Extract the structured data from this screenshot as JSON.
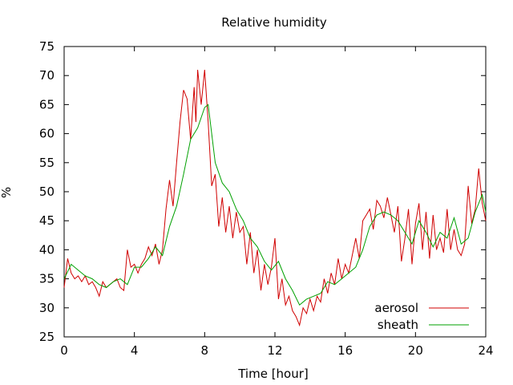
{
  "chart_data": {
    "type": "line",
    "title": "Relative humidity",
    "xlabel": "Time [hour]",
    "ylabel": "%",
    "xlim": [
      0,
      24
    ],
    "ylim": [
      25,
      75
    ],
    "x_ticks": [
      0,
      4,
      8,
      12,
      16,
      20,
      24
    ],
    "y_ticks": [
      25,
      30,
      35,
      40,
      45,
      50,
      55,
      60,
      65,
      70,
      75
    ],
    "grid": false,
    "legend_position": "bottom-right",
    "series": [
      {
        "name": "aerosol",
        "color": "#d00000",
        "x": [
          0,
          0.2,
          0.4,
          0.6,
          0.8,
          1.0,
          1.2,
          1.4,
          1.6,
          1.8,
          2.0,
          2.2,
          2.4,
          2.6,
          2.8,
          3.0,
          3.2,
          3.4,
          3.6,
          3.8,
          4.0,
          4.2,
          4.4,
          4.6,
          4.8,
          5.0,
          5.2,
          5.4,
          5.6,
          5.8,
          6.0,
          6.2,
          6.4,
          6.6,
          6.8,
          7.0,
          7.2,
          7.4,
          7.5,
          7.6,
          7.8,
          8.0,
          8.2,
          8.4,
          8.6,
          8.8,
          9.0,
          9.2,
          9.4,
          9.6,
          9.8,
          10.0,
          10.2,
          10.4,
          10.6,
          10.8,
          11.0,
          11.2,
          11.4,
          11.6,
          11.8,
          12.0,
          12.2,
          12.4,
          12.6,
          12.8,
          13.0,
          13.2,
          13.4,
          13.6,
          13.8,
          14.0,
          14.2,
          14.4,
          14.6,
          14.8,
          15.0,
          15.2,
          15.4,
          15.6,
          15.8,
          16.0,
          16.2,
          16.4,
          16.6,
          16.8,
          17.0,
          17.2,
          17.4,
          17.6,
          17.8,
          18.0,
          18.2,
          18.4,
          18.6,
          18.8,
          19.0,
          19.2,
          19.4,
          19.6,
          19.8,
          20.0,
          20.2,
          20.4,
          20.6,
          20.8,
          21.0,
          21.2,
          21.4,
          21.6,
          21.8,
          22.0,
          22.2,
          22.4,
          22.6,
          22.8,
          23.0,
          23.2,
          23.4,
          23.6,
          23.8,
          24.0
        ],
        "values": [
          33.5,
          38.5,
          36.0,
          35.0,
          35.5,
          34.5,
          35.5,
          34.0,
          34.5,
          33.5,
          32.0,
          34.5,
          33.5,
          34.0,
          34.5,
          35.0,
          33.5,
          33.0,
          40.0,
          37.0,
          37.5,
          36.0,
          37.5,
          38.5,
          40.5,
          39.0,
          41.0,
          37.5,
          40.0,
          47.0,
          52.0,
          47.5,
          55.0,
          62.0,
          67.5,
          66.0,
          59.0,
          68.0,
          62.0,
          71.0,
          65.0,
          71.0,
          62.0,
          51.0,
          53.0,
          44.0,
          49.0,
          43.0,
          47.5,
          42.0,
          46.5,
          43.0,
          44.0,
          37.5,
          43.0,
          36.0,
          40.0,
          33.0,
          37.5,
          34.0,
          37.0,
          42.0,
          31.5,
          35.0,
          30.5,
          32.0,
          29.5,
          28.5,
          27.0,
          30.0,
          29.0,
          31.5,
          29.5,
          32.0,
          31.0,
          35.0,
          32.5,
          36.0,
          34.0,
          38.5,
          35.0,
          37.5,
          36.0,
          39.0,
          42.0,
          38.5,
          45.0,
          46.0,
          47.0,
          43.5,
          48.5,
          47.5,
          45.5,
          49.0,
          46.0,
          43.0,
          47.5,
          38.0,
          42.0,
          47.0,
          37.5,
          44.5,
          48.0,
          40.0,
          46.5,
          38.5,
          46.0,
          40.0,
          42.0,
          39.5,
          47.0,
          40.0,
          43.5,
          40.0,
          39.0,
          41.0,
          51.0,
          44.5,
          47.0,
          54.0,
          48.0,
          45.0
        ]
      },
      {
        "name": "sheath",
        "color": "#00a000",
        "x": [
          0,
          0.4,
          0.8,
          1.2,
          1.6,
          2.0,
          2.4,
          2.8,
          3.2,
          3.6,
          4.0,
          4.4,
          4.8,
          5.2,
          5.6,
          6.0,
          6.4,
          6.8,
          7.2,
          7.6,
          8.0,
          8.2,
          8.6,
          9.0,
          9.4,
          9.8,
          10.2,
          10.6,
          11.0,
          11.4,
          11.8,
          12.2,
          12.6,
          13.0,
          13.4,
          13.8,
          14.2,
          14.6,
          15.0,
          15.4,
          15.8,
          16.2,
          16.6,
          17.0,
          17.4,
          17.8,
          18.2,
          18.6,
          19.0,
          19.4,
          19.8,
          20.2,
          20.6,
          21.0,
          21.4,
          21.8,
          22.2,
          22.6,
          23.0,
          23.4,
          23.8,
          24.0
        ],
        "values": [
          35.0,
          37.5,
          36.5,
          35.5,
          35.0,
          34.0,
          33.5,
          34.5,
          35.0,
          34.0,
          37.0,
          37.0,
          38.5,
          40.5,
          39.0,
          44.0,
          47.5,
          53.0,
          59.0,
          61.0,
          64.5,
          65.0,
          55.0,
          51.5,
          50.0,
          47.0,
          45.0,
          42.0,
          40.5,
          38.0,
          36.5,
          38.0,
          35.0,
          33.0,
          30.5,
          31.5,
          32.0,
          32.5,
          34.5,
          34.0,
          35.0,
          36.0,
          37.0,
          40.0,
          44.0,
          46.0,
          46.5,
          46.0,
          45.0,
          43.0,
          41.0,
          45.0,
          43.0,
          40.5,
          43.0,
          42.0,
          45.5,
          41.0,
          42.0,
          46.5,
          49.5,
          46.5
        ]
      }
    ]
  }
}
